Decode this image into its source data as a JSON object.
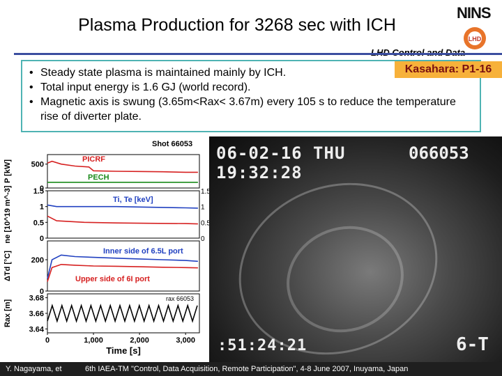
{
  "header": {
    "title": "Plasma Production for 3268 sec with ICH",
    "org": "NINS",
    "logo_text": "LHD",
    "subtitle": "LHD Control and Data",
    "badge": "Kasahara: P1-16"
  },
  "bullets": [
    "Steady state plasma is maintained mainly by ICH.",
    "Total input energy is 1.6 GJ (world record).",
    "Magnetic axis is swung (3.65m<Rax< 3.67m) every 105 s to reduce the temperature rise of diverter plate."
  ],
  "chart_data": {
    "type": "line",
    "shot": "Shot 66053",
    "xlabel": "Time [s]",
    "x_ticks": [
      "0",
      "1,000",
      "2,000",
      "3,000"
    ],
    "xlim": [
      0,
      3300
    ],
    "panels": [
      {
        "ylabel": "P [kW]",
        "y_ticks": [
          "0",
          "500"
        ],
        "ylim": [
          0,
          700
        ],
        "series": [
          {
            "name": "PICRF",
            "color": "#d62020",
            "x": [
              0,
              100,
              300,
              600,
              900,
              1000,
              1500,
              2000,
              2500,
              3000,
              3268
            ],
            "y": [
              520,
              560,
              500,
              460,
              440,
              360,
              350,
              345,
              340,
              330,
              330
            ]
          },
          {
            "name": "PECH",
            "color": "#1a8a1a",
            "x": [
              0,
              3268
            ],
            "y": [
              120,
              120
            ]
          }
        ]
      },
      {
        "ylabel": "ne [10^19 m^-3]",
        "y_ticks": [
          "0",
          "0.5",
          "1",
          "1.5"
        ],
        "ylim": [
          0,
          1.5
        ],
        "right_ticks": [
          "0",
          "0.5",
          "1",
          "1.5"
        ],
        "series": [
          {
            "name": "ne",
            "color": "#d62020",
            "x": [
              0,
              200,
              800,
              1500,
              2200,
              3000,
              3268
            ],
            "y": [
              0.7,
              0.55,
              0.5,
              0.48,
              0.47,
              0.46,
              0.45
            ]
          },
          {
            "name": "Ti, Te [keV]",
            "color": "#2040c0",
            "x": [
              0,
              200,
              800,
              1500,
              2200,
              3000,
              3268
            ],
            "y": [
              1.05,
              1.0,
              1.0,
              1.0,
              0.98,
              0.96,
              0.95
            ]
          }
        ]
      },
      {
        "ylabel": "ΔTd [°C]",
        "y_ticks": [
          "0",
          "200"
        ],
        "ylim": [
          0,
          320
        ],
        "series": [
          {
            "name": "Inner side of 6.5L port",
            "color": "#2040c0",
            "x": [
              0,
              100,
              300,
              600,
              1000,
              1500,
              2000,
              2500,
              3000,
              3268
            ],
            "y": [
              80,
              200,
              230,
              220,
              215,
              210,
              205,
              200,
              195,
              190
            ]
          },
          {
            "name": "Upper side of 6I port",
            "color": "#d62020",
            "x": [
              0,
              100,
              300,
              600,
              1000,
              1500,
              2000,
              2500,
              3000,
              3268
            ],
            "y": [
              60,
              150,
              170,
              165,
              160,
              158,
              155,
              152,
              150,
              148
            ]
          }
        ]
      },
      {
        "ylabel": "Rax [m]",
        "y_ticks": [
          "3.64",
          "3.66",
          "3.68"
        ],
        "ylim": [
          3.635,
          3.685
        ],
        "legend_text": "rax 66053",
        "series": [
          {
            "name": "Rax",
            "color": "#000000",
            "x": [
              0,
              105,
              210,
              315,
              420,
              525,
              630,
              735,
              840,
              945,
              1050,
              1155,
              1260,
              1365,
              1470,
              1575,
              1680,
              1785,
              1890,
              1995,
              2100,
              2205,
              2310,
              2415,
              2520,
              2625,
              2730,
              2835,
              2940,
              3045,
              3150,
              3255
            ],
            "y": [
              3.65,
              3.67,
              3.65,
              3.67,
              3.65,
              3.67,
              3.65,
              3.67,
              3.65,
              3.67,
              3.65,
              3.67,
              3.65,
              3.67,
              3.65,
              3.67,
              3.65,
              3.67,
              3.65,
              3.67,
              3.65,
              3.67,
              3.65,
              3.67,
              3.65,
              3.67,
              3.65,
              3.67,
              3.65,
              3.67,
              3.65,
              3.67
            ]
          }
        ]
      }
    ]
  },
  "camera": {
    "date": "06-02-16 THU",
    "time": "19:32:28",
    "shot": "066053",
    "clock": ":51:24:21",
    "label": "6-T"
  },
  "footer": {
    "author": "Y. Nagayama, et",
    "conference": "6th IAEA-TM \"Control, Data Acquisition, Remote Participation\", 4-8 June 2007, Inuyama, Japan"
  }
}
